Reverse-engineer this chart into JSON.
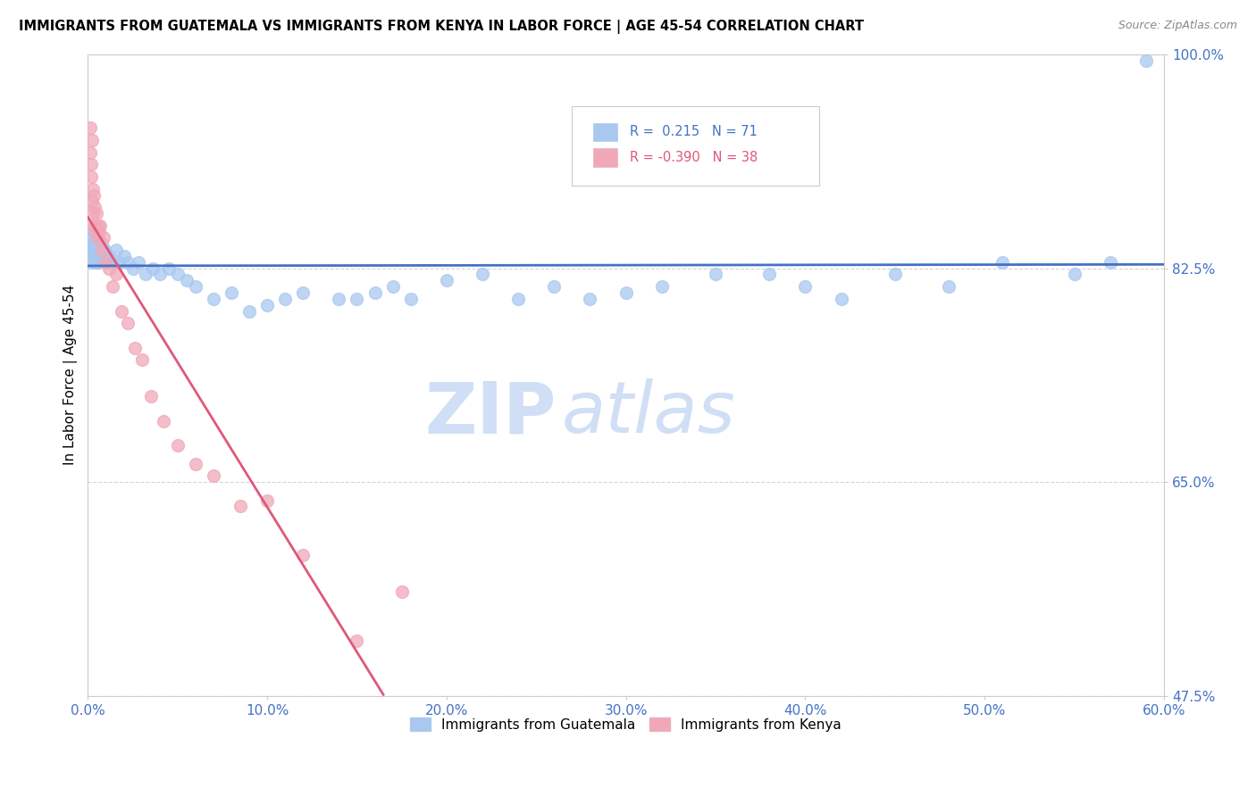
{
  "title": "IMMIGRANTS FROM GUATEMALA VS IMMIGRANTS FROM KENYA IN LABOR FORCE | AGE 45-54 CORRELATION CHART",
  "source": "Source: ZipAtlas.com",
  "xmin": 0.0,
  "xmax": 60.0,
  "ymin": 47.5,
  "ymax": 100.0,
  "yticks": [
    47.5,
    65.0,
    82.5,
    100.0
  ],
  "xticks": [
    0.0,
    10.0,
    20.0,
    30.0,
    40.0,
    50.0,
    60.0
  ],
  "legend_entries": [
    "Immigrants from Guatemala",
    "Immigrants from Kenya"
  ],
  "R_guatemala": 0.215,
  "N_guatemala": 71,
  "R_kenya": -0.39,
  "N_kenya": 38,
  "color_guatemala": "#a8c8f0",
  "color_kenya": "#f0a8b8",
  "color_trend_guatemala": "#4472c4",
  "color_trend_kenya": "#e05878",
  "watermark_zip": "ZIP",
  "watermark_atlas": "atlas",
  "watermark_color": "#d0dff5",
  "guatemala_x": [
    0.15,
    0.18,
    0.2,
    0.22,
    0.25,
    0.28,
    0.3,
    0.32,
    0.35,
    0.38,
    0.4,
    0.42,
    0.45,
    0.48,
    0.5,
    0.52,
    0.55,
    0.58,
    0.6,
    0.65,
    0.7,
    0.75,
    0.8,
    0.85,
    0.9,
    0.95,
    1.0,
    1.1,
    1.2,
    1.4,
    1.6,
    1.8,
    2.0,
    2.2,
    2.5,
    2.8,
    3.2,
    3.6,
    4.0,
    4.5,
    5.0,
    5.5,
    6.0,
    7.0,
    8.0,
    9.0,
    10.0,
    11.0,
    12.0,
    14.0,
    15.0,
    16.0,
    17.0,
    18.0,
    20.0,
    22.0,
    24.0,
    26.0,
    28.0,
    30.0,
    32.0,
    35.0,
    38.0,
    40.0,
    42.0,
    45.0,
    48.0,
    51.0,
    55.0,
    57.0,
    59.0
  ],
  "guatemala_y": [
    84.0,
    83.5,
    84.5,
    85.0,
    83.0,
    84.0,
    84.5,
    85.5,
    84.0,
    83.5,
    84.0,
    83.0,
    84.5,
    83.0,
    83.5,
    84.0,
    84.5,
    83.0,
    83.5,
    84.0,
    83.5,
    84.0,
    84.5,
    84.0,
    83.5,
    84.0,
    83.5,
    83.0,
    83.5,
    83.0,
    84.0,
    83.0,
    83.5,
    83.0,
    82.5,
    83.0,
    82.0,
    82.5,
    82.0,
    82.5,
    82.0,
    81.5,
    81.0,
    80.0,
    80.5,
    79.0,
    79.5,
    80.0,
    80.5,
    80.0,
    80.0,
    80.5,
    81.0,
    80.0,
    81.5,
    82.0,
    80.0,
    81.0,
    80.0,
    80.5,
    81.0,
    82.0,
    82.0,
    81.0,
    80.0,
    82.0,
    81.0,
    83.0,
    82.0,
    83.0,
    99.5
  ],
  "kenya_x": [
    0.12,
    0.15,
    0.18,
    0.2,
    0.22,
    0.25,
    0.28,
    0.3,
    0.32,
    0.35,
    0.38,
    0.42,
    0.45,
    0.5,
    0.55,
    0.6,
    0.65,
    0.7,
    0.8,
    0.9,
    1.0,
    1.2,
    1.4,
    1.6,
    1.9,
    2.2,
    2.6,
    3.0,
    3.5,
    4.2,
    5.0,
    6.0,
    7.0,
    8.5,
    10.0,
    12.0,
    15.0,
    17.5
  ],
  "kenya_y": [
    94.0,
    92.0,
    91.0,
    90.0,
    93.0,
    88.0,
    87.0,
    89.0,
    88.5,
    86.0,
    87.5,
    86.0,
    85.5,
    87.0,
    85.0,
    86.0,
    85.5,
    86.0,
    84.0,
    85.0,
    83.0,
    82.5,
    81.0,
    82.0,
    79.0,
    78.0,
    76.0,
    75.0,
    72.0,
    70.0,
    68.0,
    66.5,
    65.5,
    63.0,
    63.5,
    59.0,
    52.0,
    56.0
  ]
}
